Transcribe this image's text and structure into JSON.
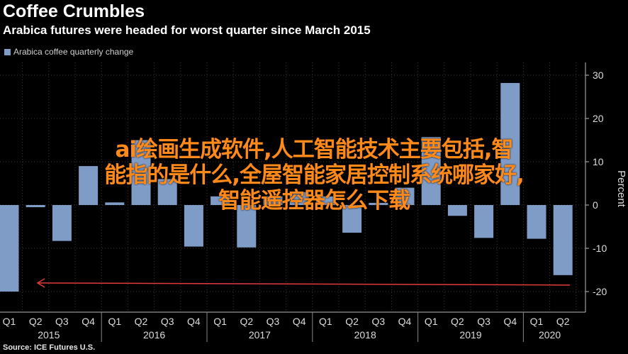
{
  "header": {
    "title": "Coffee Crumbles",
    "subtitle": "Arabica futures were headed for worst quarter since March 2015"
  },
  "legend": {
    "label": "Arabica coffee quarterly change"
  },
  "footer": {
    "source": "Source: ICE Futures U.S."
  },
  "overlay": {
    "lines": [
      "ai绘画生成软件,人工智能技术主要包括,智",
      "能指的是什么,全屋智能家居控制系统哪家好,",
      "智能遥控器怎么下载"
    ]
  },
  "colors": {
    "bar": "#7f9cc7",
    "background": "#000000",
    "grid": "#3a3a3a",
    "arrow": "#e23a3a",
    "overlay_text": "#ff8a1a"
  },
  "chart_data": {
    "type": "bar",
    "categories": [
      "Q1",
      "Q2",
      "Q3",
      "Q4",
      "Q1",
      "Q2",
      "Q3",
      "Q4",
      "Q1",
      "Q2",
      "Q3",
      "Q4",
      "Q1",
      "Q2",
      "Q3",
      "Q4",
      "Q1",
      "Q2",
      "Q3",
      "Q4",
      "Q1",
      "Q2"
    ],
    "years": [
      {
        "label": "2015",
        "start": 0,
        "end": 3
      },
      {
        "label": "2016",
        "start": 4,
        "end": 7
      },
      {
        "label": "2017",
        "start": 8,
        "end": 11
      },
      {
        "label": "2018",
        "start": 12,
        "end": 15
      },
      {
        "label": "2019",
        "start": 16,
        "end": 19
      },
      {
        "label": "2020",
        "start": 20,
        "end": 21
      }
    ],
    "series": [
      {
        "name": "Arabica coffee quarterly change",
        "values": [
          -20,
          -0.5,
          -8.3,
          9,
          0.6,
          15,
          6,
          -9.6,
          2,
          -9.8,
          2,
          3,
          2,
          -6.4,
          0.5,
          4,
          15.7,
          -2.5,
          -7.6,
          28.2,
          -7.8,
          -16.2
        ]
      }
    ],
    "ylabel": "Percent",
    "yticks": [
      30,
      20,
      10,
      0,
      -10,
      -20
    ],
    "ylim": [
      -25,
      32
    ],
    "grid": true,
    "legend_position": "top-left",
    "annotations": [
      {
        "type": "arrow",
        "from_index": 21,
        "to_index": 0,
        "y": -18.5
      }
    ]
  }
}
